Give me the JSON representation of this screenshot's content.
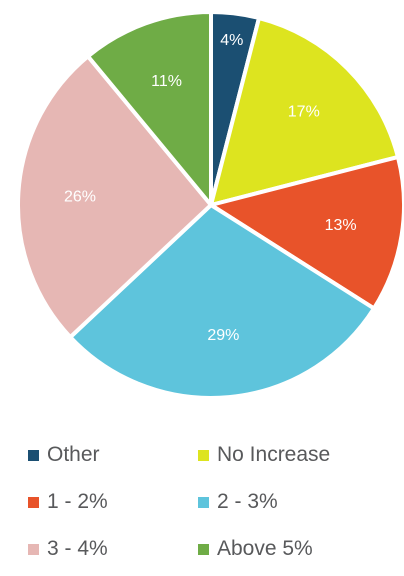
{
  "chart_data": {
    "type": "pie",
    "slices": [
      {
        "name": "Other",
        "value": 4,
        "label": "4%",
        "color": "#1b4f72"
      },
      {
        "name": "No Increase",
        "value": 17,
        "label": "17%",
        "color": "#dde41f"
      },
      {
        "name": "1 - 2%",
        "value": 13,
        "label": "13%",
        "color": "#e8532a"
      },
      {
        "name": "2 - 3%",
        "value": 29,
        "label": "29%",
        "color": "#5ec4dc"
      },
      {
        "name": "3 - 4%",
        "value": 26,
        "label": "26%",
        "color": "#e6b7b4"
      },
      {
        "name": "Above 5%",
        "value": 11,
        "label": "11%",
        "color": "#6fac46"
      }
    ],
    "start_angle": "12 o'clock",
    "direction": "clockwise",
    "legend_position": "bottom"
  }
}
